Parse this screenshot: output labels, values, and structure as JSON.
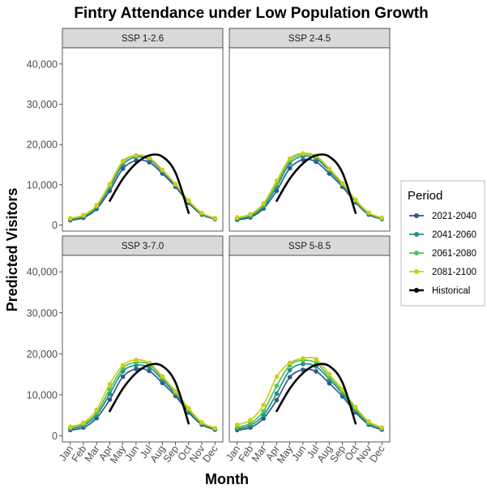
{
  "chart_data": {
    "type": "line",
    "title": "Fintry Attendance under Low Population Growth",
    "xlabel": "Month",
    "ylabel": "Predicted Visitors",
    "categories": [
      "Jan",
      "Feb",
      "Mar",
      "Apr",
      "May",
      "Jun",
      "Jul",
      "Aug",
      "Sep",
      "Oct",
      "Nov",
      "Dec"
    ],
    "ylim": [
      -1500,
      44000
    ],
    "yticks": [
      0,
      10000,
      20000,
      30000,
      40000
    ],
    "ytick_labels": [
      "0",
      "10,000",
      "20,000",
      "30,000",
      "40,000"
    ],
    "legend": {
      "title": "Period",
      "position": "right",
      "entries": [
        "2021-2040",
        "2041-2060",
        "2061-2080",
        "2081-2100",
        "Historical"
      ]
    },
    "colors": {
      "2021-2040": "#31578c",
      "2041-2060": "#21908c",
      "2061-2080": "#4cc35b",
      "2081-2100": "#d2cc16",
      "Historical": "#000000"
    },
    "grid": false,
    "panels": [
      {
        "label": "SSP 1-2.6",
        "series": [
          {
            "name": "2021-2040",
            "values": [
              1200,
              1800,
              4000,
              8500,
              14000,
              16000,
              15600,
              12800,
              9500,
              5500,
              2600,
              1500
            ]
          },
          {
            "name": "2041-2060",
            "values": [
              1400,
              2100,
              4400,
              9300,
              15000,
              16900,
              16300,
              13400,
              9900,
              5800,
              2800,
              1600
            ]
          },
          {
            "name": "2061-2080",
            "values": [
              1600,
              2300,
              4700,
              9800,
              15600,
              17300,
              16700,
              13700,
              10100,
              6000,
              3000,
              1700
            ]
          },
          {
            "name": "2081-2100",
            "values": [
              1700,
              2500,
              4900,
              10200,
              15900,
              17300,
              16700,
              13700,
              10200,
              6100,
              3000,
              1700
            ]
          },
          {
            "name": "Historical",
            "values": [
              null,
              null,
              null,
              6000,
              11500,
              15300,
              17300,
              17000,
              13000,
              3000,
              null,
              null
            ]
          }
        ]
      },
      {
        "label": "SSP 2-4.5",
        "series": [
          {
            "name": "2021-2040",
            "values": [
              1300,
              1900,
              4100,
              8500,
              14100,
              16200,
              15700,
              12800,
              9500,
              5600,
              2600,
              1500
            ]
          },
          {
            "name": "2041-2060",
            "values": [
              1500,
              2200,
              4600,
              9500,
              15300,
              17100,
              16500,
              13500,
              10000,
              5900,
              2800,
              1600
            ]
          },
          {
            "name": "2061-2080",
            "values": [
              1700,
              2500,
              5000,
              10200,
              16000,
              17600,
              17000,
              13900,
              10300,
              6100,
              3000,
              1700
            ]
          },
          {
            "name": "2081-2100",
            "values": [
              1900,
              2700,
              5400,
              11000,
              16500,
              17800,
              17200,
              14000,
              10400,
              6300,
              3100,
              1800
            ]
          },
          {
            "name": "Historical",
            "values": [
              null,
              null,
              null,
              6000,
              11500,
              15300,
              17300,
              17000,
              13000,
              3000,
              null,
              null
            ]
          }
        ]
      },
      {
        "label": "SSP 3-7.0",
        "series": [
          {
            "name": "2021-2040",
            "values": [
              1400,
              2000,
              4300,
              8800,
              14400,
              16300,
              15800,
              12900,
              9700,
              5700,
              2700,
              1500
            ]
          },
          {
            "name": "2041-2060",
            "values": [
              1700,
              2500,
              5000,
              10200,
              15700,
              17200,
              16700,
              13700,
              10200,
              6100,
              3000,
              1700
            ]
          },
          {
            "name": "2061-2080",
            "values": [
              1900,
              2800,
              5600,
              11300,
              16500,
              17900,
              17400,
              14200,
              10600,
              6400,
              3100,
              1800
            ]
          },
          {
            "name": "2081-2100",
            "values": [
              2200,
              3200,
              6300,
              12600,
              17200,
              18500,
              17800,
              14500,
              10900,
              6700,
              3300,
              1900
            ]
          },
          {
            "name": "Historical",
            "values": [
              null,
              null,
              null,
              6000,
              11500,
              15300,
              17300,
              17000,
              13000,
              3000,
              null,
              null
            ]
          }
        ]
      },
      {
        "label": "SSP 5-8.5",
        "series": [
          {
            "name": "2021-2040",
            "values": [
              1400,
              2000,
              4200,
              8700,
              14300,
              16100,
              15700,
              12800,
              9600,
              5700,
              2700,
              1500
            ]
          },
          {
            "name": "2041-2060",
            "values": [
              1700,
              2500,
              5000,
              10300,
              16000,
              17500,
              16900,
              13800,
              10300,
              6200,
              3000,
              1700
            ]
          },
          {
            "name": "2061-2080",
            "values": [
              2100,
              3000,
              6000,
              12200,
              17200,
              18400,
              17800,
              14400,
              10800,
              6600,
              3200,
              1800
            ]
          },
          {
            "name": "2081-2100",
            "values": [
              2700,
              3800,
              7500,
              14400,
              17800,
              18900,
              18700,
              15000,
              11300,
              7000,
              3500,
              2000
            ]
          },
          {
            "name": "Historical",
            "values": [
              null,
              null,
              null,
              6000,
              11500,
              15300,
              17300,
              17000,
              13000,
              3000,
              null,
              null
            ]
          }
        ]
      }
    ]
  }
}
